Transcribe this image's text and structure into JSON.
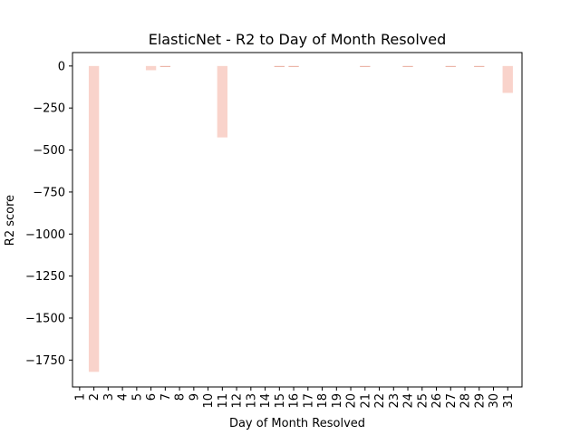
{
  "chart_data": {
    "type": "bar",
    "title": "ElasticNet - R2 to Day of Month Resolved",
    "xlabel": "Day of Month Resolved",
    "ylabel": "R2 score",
    "categories": [
      "1",
      "2",
      "3",
      "4",
      "5",
      "6",
      "7",
      "8",
      "9",
      "10",
      "11",
      "12",
      "13",
      "14",
      "15",
      "16",
      "17",
      "18",
      "19",
      "20",
      "21",
      "22",
      "23",
      "24",
      "25",
      "26",
      "27",
      "28",
      "29",
      "30",
      "31"
    ],
    "values": [
      0,
      -1820,
      0,
      0,
      0,
      -25,
      -3,
      0,
      0,
      0,
      -425,
      0,
      0,
      0,
      -2,
      -2,
      0,
      0,
      0,
      0,
      -2,
      0,
      0,
      -2,
      0,
      0,
      -2,
      0,
      -3,
      0,
      -160
    ],
    "yticks": [
      0,
      -250,
      -500,
      -750,
      -1000,
      -1250,
      -1500,
      -1750
    ],
    "ytick_labels": [
      "0",
      "−250",
      "−500",
      "−750",
      "−1000",
      "−1250",
      "−1500",
      "−1750"
    ],
    "ylim": [
      -1910,
      80
    ],
    "grid": false,
    "bar_color": "#f9d3cb",
    "bar_edge_color": "#e8a898"
  }
}
